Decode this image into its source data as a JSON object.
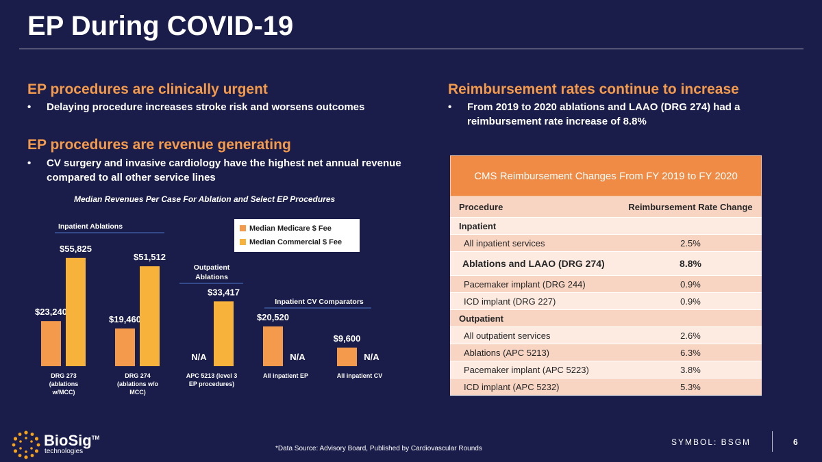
{
  "page": {
    "title": "EP During COVID-19",
    "page_number": "6",
    "symbol": "SYMBOL: BSGM"
  },
  "left": {
    "heading1": "EP procedures are clinically urgent",
    "bullet1": "Delaying procedure increases stroke risk and worsens outcomes",
    "heading2": "EP procedures are revenue generating",
    "bullet2": "CV surgery and invasive cardiology have the highest net annual revenue compared to all other service lines"
  },
  "right": {
    "heading": "Reimbursement rates continue to increase",
    "bullet": "From 2019 to 2020 ablations and LAAO (DRG 274) had a reimbursement rate increase of 8.8%"
  },
  "chart_data": {
    "type": "bar",
    "title": "Median Revenues Per Case For Ablation and Select EP Procedures",
    "categories": [
      "DRG 273 (ablations w/MCC)",
      "DRG 274 (ablations w/o MCC)",
      "APC 5213 (level 3 EP procedures)",
      "All inpatient EP",
      "All inpatient CV"
    ],
    "category_lines": [
      [
        "DRG 273",
        "(ablations",
        "w/MCC)"
      ],
      [
        "DRG 274",
        "(ablations w/o",
        "MCC)"
      ],
      [
        "APC 5213 (level 3",
        "EP procedures)"
      ],
      [
        "All inpatient EP"
      ],
      [
        "All inpatient CV"
      ]
    ],
    "series": [
      {
        "name": "Median Medicare $ Fee",
        "color": "#f39a4c",
        "values": [
          23240,
          19460,
          null,
          20520,
          9600
        ],
        "labels": [
          "$23,240",
          "$19,460",
          "N/A",
          "$20,520",
          "$9,600"
        ]
      },
      {
        "name": "Median Commercial $ Fee",
        "color": "#f7b23b",
        "values": [
          55825,
          51512,
          33417,
          null,
          null
        ],
        "labels": [
          "$55,825",
          "$51,512",
          "$33,417",
          "N/A",
          "N/A"
        ]
      }
    ],
    "ylim": [
      0,
      60000
    ],
    "group_labels": {
      "inpatient_ablations": "Inpatient Ablations",
      "outpatient_ablations_1": "Outpatient",
      "outpatient_ablations_2": "Ablations",
      "inpatient_cv": "Inpatient CV Comparators"
    },
    "legend_position": "top-right"
  },
  "table": {
    "title": "CMS Reimbursement Changes From FY 2019 to FY 2020",
    "col_procedure": "Procedure",
    "col_change": "Reimbursement Rate Change",
    "inpatient_label": "Inpatient",
    "outpatient_label": "Outpatient",
    "inpatient_rows": [
      {
        "procedure": "All inpatient services",
        "change": "2.5%"
      },
      {
        "procedure": "Ablations and LAAO (DRG 274)",
        "change": "8.8%"
      },
      {
        "procedure": "Pacemaker implant (DRG 244)",
        "change": "0.9%"
      },
      {
        "procedure": "ICD implant (DRG 227)",
        "change": "0.9%"
      }
    ],
    "outpatient_rows": [
      {
        "procedure": "All outpatient services",
        "change": "2.6%"
      },
      {
        "procedure": "Ablations (APC 5213)",
        "change": "6.3%"
      },
      {
        "procedure": "Pacemaker implant (APC 5223)",
        "change": "3.8%"
      },
      {
        "procedure": "ICD implant (APC 5232)",
        "change": "5.3%"
      }
    ]
  },
  "footer": {
    "source": "*Data Source: Advisory Board, Published by Cardiovascular Rounds",
    "logo_name": "BioSig",
    "logo_tm": "TM",
    "logo_sub": "technologies"
  }
}
